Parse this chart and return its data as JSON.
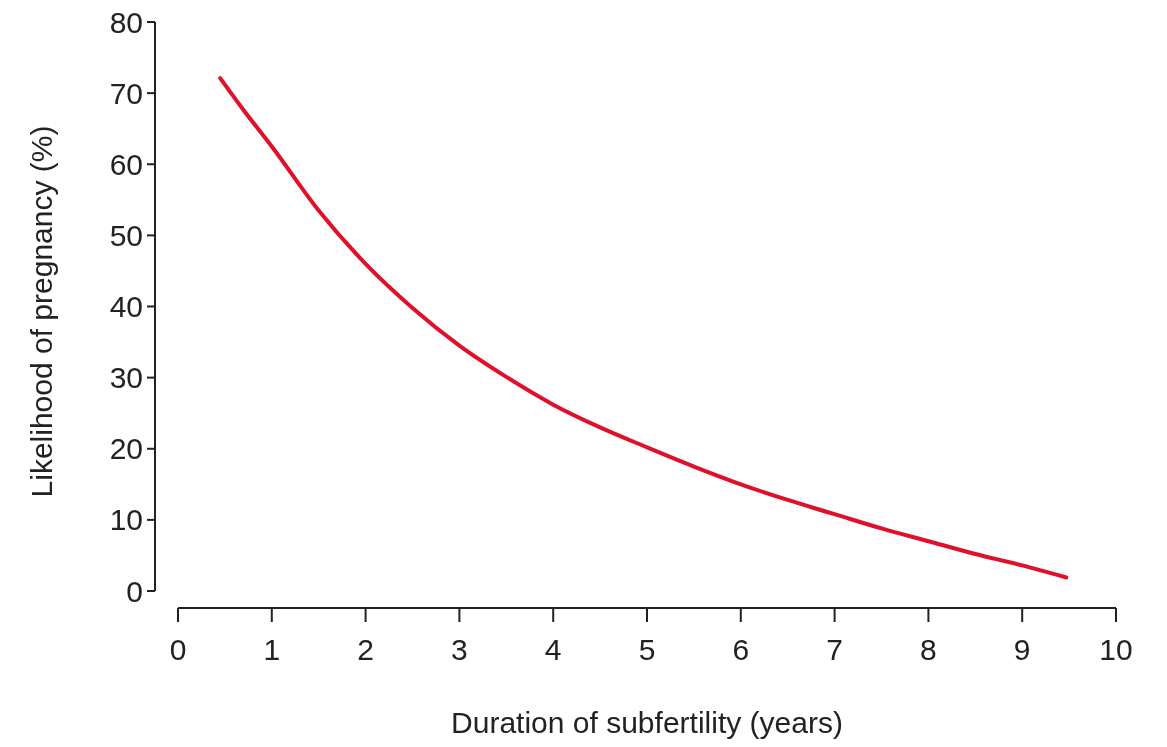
{
  "chart_data": {
    "type": "line",
    "xlabel": "Duration of subfertility (years)",
    "ylabel": "Likelihood of pregnancy (%)",
    "x": [
      0.45,
      0.7,
      1,
      1.5,
      2,
      2.5,
      3,
      3.5,
      4,
      4.5,
      5,
      5.5,
      6,
      6.5,
      7,
      7.5,
      8,
      8.5,
      9,
      9.47
    ],
    "series": [
      {
        "color": "#e0102a",
        "values": [
          72.1,
          67.6,
          62.5,
          53.5,
          46,
          39.8,
          34.5,
          30.1,
          26.2,
          23,
          20.2,
          17.5,
          15,
          12.8,
          10.8,
          8.8,
          7,
          5.2,
          3.6,
          1.9
        ]
      }
    ],
    "xlim": [
      0,
      10
    ],
    "xticks": [
      0,
      1,
      2,
      3,
      4,
      5,
      6,
      7,
      8,
      9,
      10
    ],
    "ylim": [
      0,
      80
    ],
    "yticks": [
      0,
      10,
      20,
      30,
      40,
      50,
      60,
      70,
      80
    ],
    "grid": false,
    "marker": "none",
    "line_style": "solid"
  }
}
